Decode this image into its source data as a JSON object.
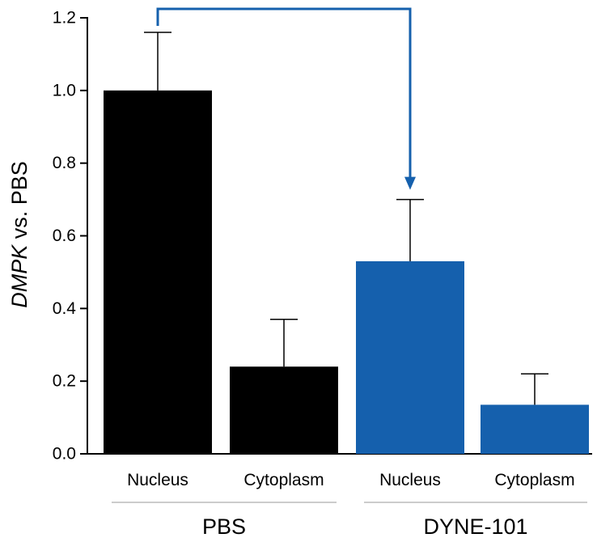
{
  "chart_data": {
    "type": "bar",
    "ylabel_italic": "DMPK",
    "ylabel_rest": " vs. PBS",
    "ylim": [
      0,
      1.2
    ],
    "yticks": [
      "0.0",
      "0.2",
      "0.4",
      "0.6",
      "0.8",
      "1.0",
      "1.2"
    ],
    "grid": false,
    "groups": [
      {
        "name": "PBS",
        "color": "#000000",
        "bars": [
          {
            "category": "Nucleus",
            "value": 1.0,
            "error": 0.16
          },
          {
            "category": "Cytoplasm",
            "value": 0.24,
            "error": 0.13
          }
        ]
      },
      {
        "name": "DYNE-101",
        "color": "#1560ad",
        "bars": [
          {
            "category": "Nucleus",
            "value": 0.53,
            "error": 0.17
          },
          {
            "category": "Cytoplasm",
            "value": 0.135,
            "error": 0.085
          }
        ]
      }
    ],
    "annotation": {
      "type": "bracket-arrow",
      "from": "PBS Nucleus",
      "to": "DYNE-101 Nucleus",
      "color": "#1560ad"
    }
  }
}
